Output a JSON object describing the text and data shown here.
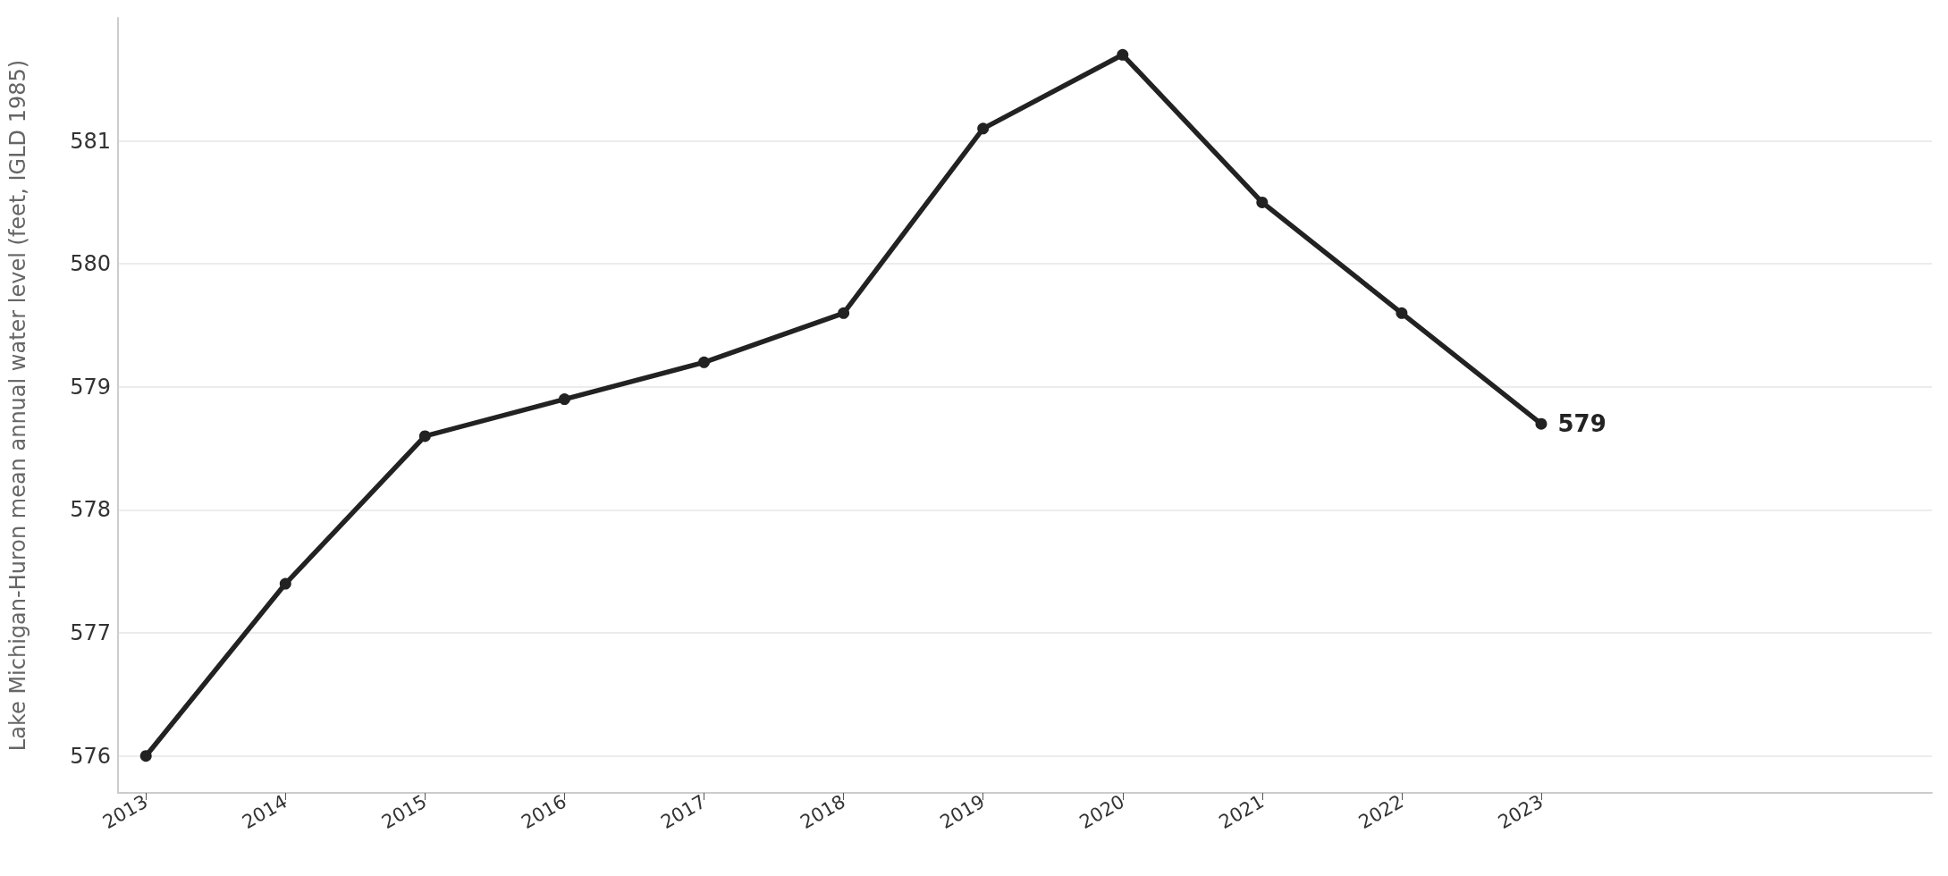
{
  "chart_data": {
    "type": "line",
    "ylabel": "Lake Michigan-Huron mean annual water level (feet, IGLD 1985)",
    "x": [
      2013,
      2014,
      2015,
      2016,
      2017,
      2018,
      2019,
      2020,
      2021,
      2022,
      2023
    ],
    "series": [
      {
        "color": "#222222",
        "values": [
          576.0,
          577.4,
          578.6,
          578.9,
          579.2,
          579.6,
          581.1,
          581.7,
          580.5,
          579.6,
          578.7
        ],
        "value_labels": [
          null,
          null,
          null,
          null,
          null,
          null,
          null,
          null,
          null,
          null,
          "579"
        ]
      }
    ],
    "xlim": [
      2012.8,
      2025.8
    ],
    "xticks": [
      2013,
      2014,
      2015,
      2016,
      2017,
      2018,
      2019,
      2020,
      2021,
      2022,
      2023
    ],
    "ylim": [
      575.7,
      582.0
    ],
    "yticks": [
      576,
      577,
      578,
      579,
      580,
      581
    ],
    "grid": "y",
    "marker": "circle",
    "line_style": "solid"
  }
}
